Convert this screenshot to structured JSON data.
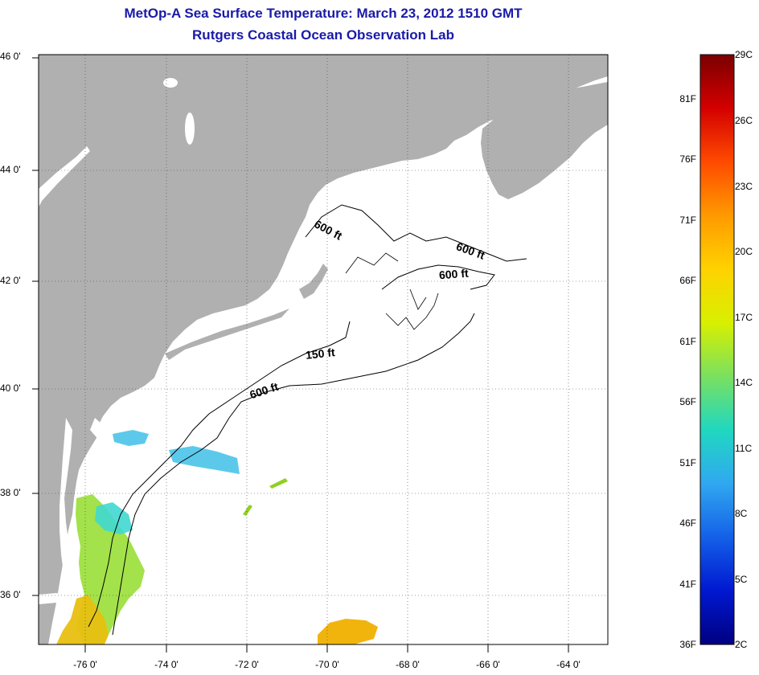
{
  "header": {
    "title": "MetOp-A Sea Surface Temperature:  March 23, 2012 1510 GMT",
    "subtitle": "Rutgers Coastal Ocean Observation Lab"
  },
  "map": {
    "lat_labels": [
      "46 0'",
      "44 0'",
      "42 0'",
      "40 0'",
      "38 0'",
      "36 0'"
    ],
    "lon_labels": [
      "-76 0'",
      "-74 0'",
      "-72 0'",
      "-70 0'",
      "-68 0'",
      "-66 0'",
      "-64 0'"
    ],
    "contour_labels": [
      "600 ft",
      "600 ft",
      "600 ft",
      "150 ft",
      "600 ft"
    ],
    "land_color": "#b0b0b0",
    "water_color": "#ffffff",
    "grid": "dotted"
  },
  "colorbar": {
    "f_labels": [
      "81F",
      "76F",
      "71F",
      "66F",
      "61F",
      "56F",
      "51F",
      "46F",
      "41F",
      "36F"
    ],
    "c_labels": [
      "29C",
      "26C",
      "23C",
      "20C",
      "17C",
      "14C",
      "11C",
      "8C",
      "5C",
      "2C"
    ],
    "colors": [
      "#7a0000",
      "#d40000",
      "#ff4a00",
      "#ff9a00",
      "#ffd200",
      "#d8f000",
      "#7ae060",
      "#20d8c0",
      "#30a8f0",
      "#1460e8",
      "#0018d0",
      "#000080"
    ]
  }
}
